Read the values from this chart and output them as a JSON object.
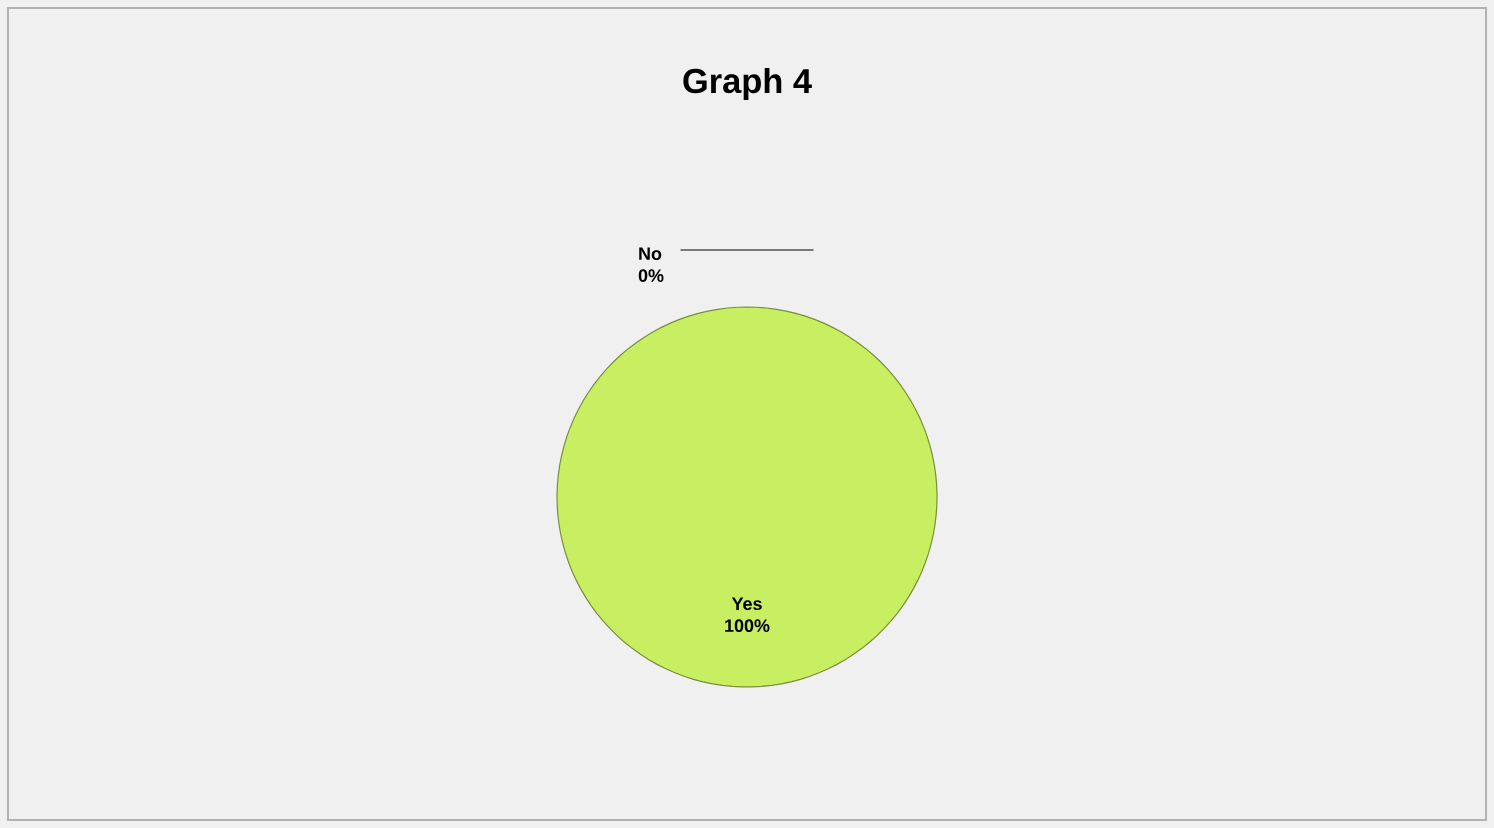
{
  "chart_data": {
    "type": "pie",
    "title": "Graph 4",
    "categories": [
      "No",
      "Yes"
    ],
    "values": [
      0,
      100
    ],
    "colors": [
      "#4f81bd",
      "#c8ee62"
    ],
    "value_labels": [
      "0%",
      "100%"
    ]
  }
}
